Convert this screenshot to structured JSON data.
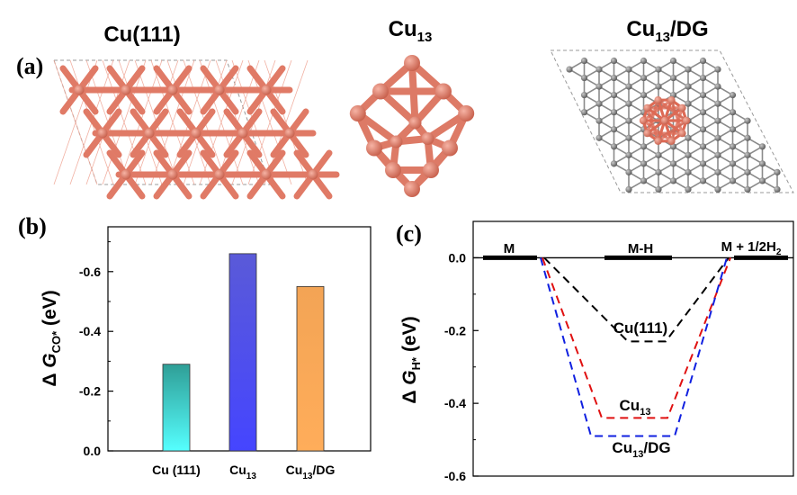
{
  "panel_a": {
    "label": "(a)",
    "structures": [
      {
        "title": "Cu(111)"
      },
      {
        "title_base": "Cu",
        "title_sub": "13"
      },
      {
        "title_base": "Cu",
        "title_sub": "13",
        "title_suffix": "/DG"
      }
    ]
  },
  "colors": {
    "copper": "#e07a66",
    "copper_dark": "#b85845",
    "carbon": "#7a7a7a",
    "bar_teal": "#2fb5ac",
    "bar_blue": "#4d4df0",
    "bar_orange": "#f7a95a",
    "line_black": "#000000",
    "line_red": "#e01010",
    "line_blue": "#1020e0"
  },
  "chart_data": [
    {
      "type": "bar",
      "panel": "(b)",
      "categories": [
        {
          "base": "Cu (111)",
          "sub": "",
          "suffix": ""
        },
        {
          "base": "Cu",
          "sub": "13",
          "suffix": ""
        },
        {
          "base": "Cu",
          "sub": "13",
          "suffix": "/DG"
        }
      ],
      "values": [
        -0.29,
        -0.66,
        -0.55
      ],
      "ylabel": {
        "prefix": "Δ ",
        "var": "G",
        "sub": "CO*",
        "suffix": " (eV)"
      },
      "ylim": [
        0.0,
        -0.75
      ],
      "yticks": [
        0.0,
        -0.2,
        -0.4,
        -0.6
      ],
      "ytick_labels": [
        "0.0",
        "-0.2",
        "-0.4",
        "-0.6"
      ],
      "axis_inverted": true
    },
    {
      "type": "line",
      "panel": "(c)",
      "states": [
        {
          "label": "M"
        },
        {
          "label": "M-H"
        },
        {
          "label_base": "M + 1/2H",
          "label_sub": "2"
        }
      ],
      "ylabel": {
        "prefix": "Δ ",
        "var": "G",
        "sub": "H*",
        "suffix": " (eV)"
      },
      "ylim": [
        -0.6,
        0.1
      ],
      "yticks": [
        0.0,
        -0.2,
        -0.4,
        -0.6
      ],
      "ytick_labels": [
        "0.0",
        "-0.2",
        "-0.4",
        "-0.6"
      ],
      "series": [
        {
          "name": "Cu(111)",
          "values": [
            0.0,
            -0.23,
            0.0
          ],
          "color": "#000000"
        },
        {
          "name_base": "Cu",
          "name_sub": "13",
          "values": [
            0.0,
            -0.44,
            0.0
          ],
          "color": "#e01010"
        },
        {
          "name_base": "Cu",
          "name_sub": "13",
          "name_suffix": "/DG",
          "values": [
            0.0,
            -0.49,
            0.0
          ],
          "color": "#1020e0"
        }
      ]
    }
  ]
}
